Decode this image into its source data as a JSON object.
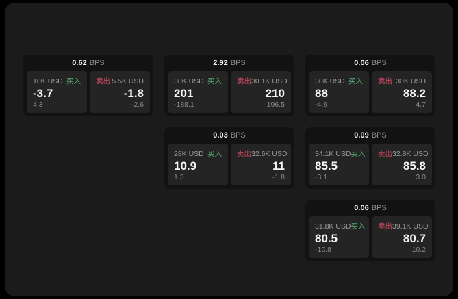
{
  "labels": {
    "bps": "BPS",
    "buy": "买入",
    "sell": "卖出"
  },
  "colors": {
    "buy_green": "#58ab72",
    "sell_red": "#c9485e",
    "page_bg": "#1b1b1b",
    "card_bg": "#121212",
    "panel_bg": "#242424"
  },
  "cards": [
    {
      "bps": "0.62",
      "buy": {
        "amount": "10K USD",
        "value": "-3.7",
        "delta": "4.3"
      },
      "sell": {
        "amount": "5.5K USD",
        "value": "-1.8",
        "delta": "-2.6"
      }
    },
    {
      "bps": "2.92",
      "buy": {
        "amount": "30K USD",
        "value": "201",
        "delta": "-188.1"
      },
      "sell": {
        "amount": "30.1K USD",
        "value": "210",
        "delta": "196.5"
      }
    },
    {
      "bps": "0.06",
      "buy": {
        "amount": "30K USD",
        "value": "88",
        "delta": "-4.9"
      },
      "sell": {
        "amount": "30K USD",
        "value": "88.2",
        "delta": "4.7"
      }
    },
    {
      "bps": "0.03",
      "buy": {
        "amount": "28K USD",
        "value": "10.9",
        "delta": "1.3"
      },
      "sell": {
        "amount": "32.6K USD",
        "value": "11",
        "delta": "-1.8"
      }
    },
    {
      "bps": "0.09",
      "buy": {
        "amount": "34.1K USD",
        "value": "85.5",
        "delta": "-3.1"
      },
      "sell": {
        "amount": "32.8K USD",
        "value": "85.8",
        "delta": "3.0"
      }
    },
    {
      "bps": "0.06",
      "buy": {
        "amount": "31.8K USD",
        "value": "80.5",
        "delta": "-10.8"
      },
      "sell": {
        "amount": "39.1K USD",
        "value": "80.7",
        "delta": "10.2"
      }
    }
  ]
}
